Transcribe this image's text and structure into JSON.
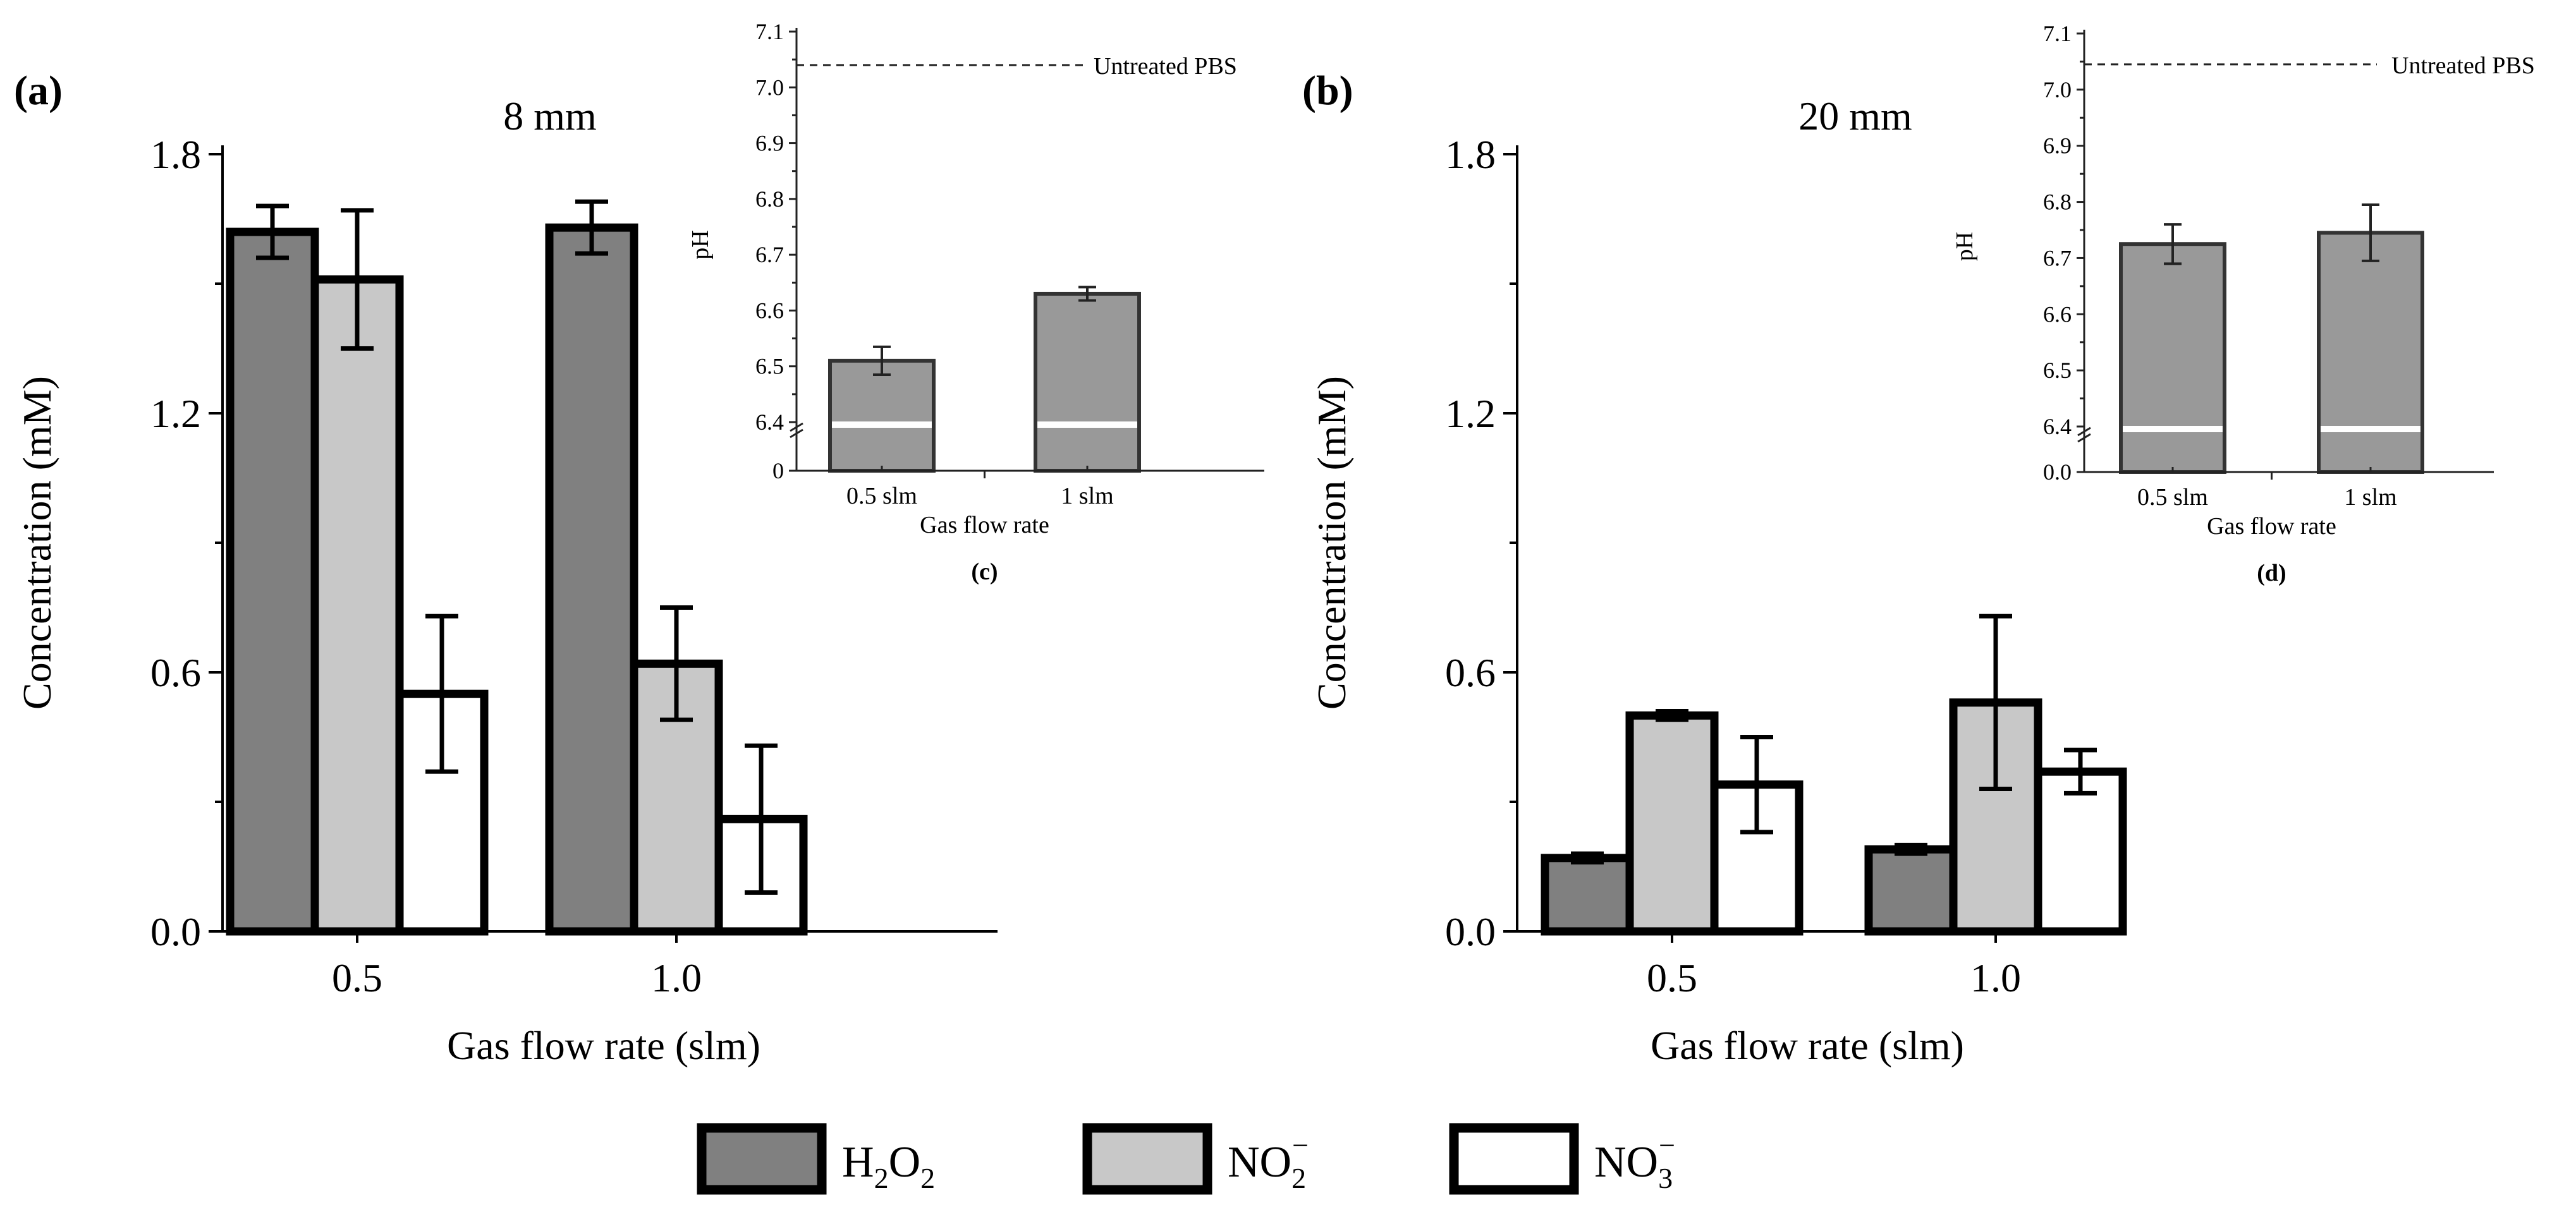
{
  "colors": {
    "h2o2": "#808080",
    "no2": "#c8c8c8",
    "no3": "#ffffff",
    "inset_bar": "#999999",
    "stroke": "#000000",
    "break_line": "#ffffff"
  },
  "legend": [
    {
      "key": "h2o2",
      "base": "H",
      "sub1": "2",
      "mid": "O",
      "sub2": "2",
      "sup": ""
    },
    {
      "key": "no2",
      "base": "NO",
      "sub1": "2",
      "mid": "",
      "sub2": "",
      "sup": "−"
    },
    {
      "key": "no3",
      "base": "NO",
      "sub1": "3",
      "mid": "",
      "sub2": "",
      "sup": "−"
    }
  ],
  "chart_data": [
    {
      "id": "a",
      "panel_label": "(a)",
      "title": "8 mm",
      "type": "bar",
      "xlabel": "Gas flow rate (slm)",
      "ylabel": "Concentration (mM)",
      "categories": [
        "0.5",
        "1.0"
      ],
      "ylim": [
        0,
        1.8
      ],
      "yticks": [
        0,
        0.6,
        1.2,
        1.8
      ],
      "ytick_labels": [
        "0.0",
        "0.6",
        "1.2",
        "1.8"
      ],
      "series": [
        {
          "key": "h2o2",
          "name": "H2O2",
          "values": [
            1.62,
            1.63
          ],
          "errors": [
            0.06,
            0.06
          ]
        },
        {
          "key": "no2",
          "name": "NO2-",
          "values": [
            1.51,
            0.62
          ],
          "errors": [
            0.16,
            0.13
          ]
        },
        {
          "key": "no3",
          "name": "NO3-",
          "values": [
            0.55,
            0.26
          ],
          "errors": [
            0.18,
            0.17
          ]
        }
      ]
    },
    {
      "id": "b",
      "panel_label": "(b)",
      "title": "20 mm",
      "type": "bar",
      "xlabel": "Gas flow rate (slm)",
      "ylabel": "Concentration (mM)",
      "categories": [
        "0.5",
        "1.0"
      ],
      "ylim": [
        0,
        1.8
      ],
      "yticks": [
        0,
        0.6,
        1.2,
        1.8
      ],
      "ytick_labels": [
        "0.0",
        "0.6",
        "1.2",
        "1.8"
      ],
      "series": [
        {
          "key": "h2o2",
          "name": "H2O2",
          "values": [
            0.17,
            0.19
          ],
          "errors": [
            0.01,
            0.01
          ]
        },
        {
          "key": "no2",
          "name": "NO2-",
          "values": [
            0.5,
            0.53
          ],
          "errors": [
            0.01,
            0.2
          ]
        },
        {
          "key": "no3",
          "name": "NO3-",
          "values": [
            0.34,
            0.37
          ],
          "errors": [
            0.11,
            0.05
          ]
        }
      ]
    },
    {
      "id": "c",
      "panel_label": "(c)",
      "type": "bar",
      "xlabel": "Gas flow rate",
      "ylabel": "pH",
      "categories": [
        "0.5 slm",
        "1 slm"
      ],
      "ylim": [
        6.4,
        7.1
      ],
      "yticks": [
        6.4,
        6.5,
        6.6,
        6.7,
        6.8,
        6.9,
        7.0,
        7.1
      ],
      "ytick_labels": [
        "6.4",
        "6.5",
        "6.6",
        "6.7",
        "6.8",
        "6.9",
        "7.0",
        "7.1"
      ],
      "zero_label": "0",
      "series": [
        {
          "name": "pH",
          "values": [
            6.51,
            6.63
          ],
          "errors": [
            0.025,
            0.012
          ]
        }
      ],
      "reference": {
        "label": "Untreated PBS",
        "value": 7.04
      }
    },
    {
      "id": "d",
      "panel_label": "(d)",
      "type": "bar",
      "xlabel": "Gas flow rate",
      "ylabel": "pH",
      "categories": [
        "0.5 slm",
        "1 slm"
      ],
      "ylim": [
        6.4,
        7.1
      ],
      "yticks": [
        6.4,
        6.5,
        6.6,
        6.7,
        6.8,
        6.9,
        7.0,
        7.1
      ],
      "ytick_labels": [
        "6.4",
        "6.5",
        "6.6",
        "6.7",
        "6.8",
        "6.9",
        "7.0",
        "7.1"
      ],
      "zero_label": "0.0",
      "series": [
        {
          "name": "pH",
          "values": [
            6.725,
            6.745
          ],
          "errors": [
            0.035,
            0.05
          ]
        }
      ],
      "reference": {
        "label": "Untreated PBS",
        "value": 7.045
      }
    }
  ]
}
